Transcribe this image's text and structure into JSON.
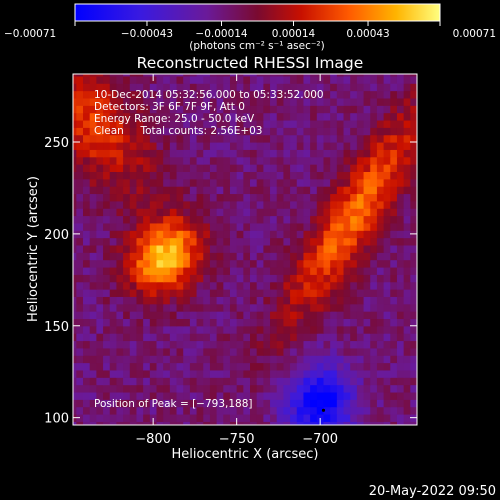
{
  "chart_data": {
    "type": "heatmap",
    "title": "Reconstructed RHESSI Image",
    "xlabel": "Heliocentric X (arcsec)",
    "ylabel": "Heliocentric Y (arcsec)",
    "xlim": [
      -848,
      -642
    ],
    "ylim": [
      96,
      287
    ],
    "x_ticks": [
      -800,
      -750,
      -700
    ],
    "x_tick_labels": [
      "−800",
      "−750",
      "−700"
    ],
    "y_ticks": [
      100,
      150,
      200,
      250
    ],
    "y_tick_labels": [
      "100",
      "150",
      "200",
      "250"
    ],
    "colorbar": {
      "range": [
        -0.00071,
        0.00071
      ],
      "ticks": [
        -0.00071,
        -0.00043,
        -0.00014,
        0.00014,
        0.00043,
        0.00071
      ],
      "tick_labels": [
        "−0.00071",
        "−0.00043",
        "−0.00014",
        "0.00014",
        "0.00043",
        "0.00071"
      ],
      "units_label": "(photons cm⁻² s⁻¹ asec⁻²)"
    },
    "annotations": {
      "time_range": "10-Dec-2014 05:32:56.000 to 05:33:52.000",
      "detectors": "Detectors: 3F 6F 7F 9F, Att 0",
      "energy_range": "Energy Range: 25.0 - 50.0 keV",
      "method": "Clean     Total counts: 2.56E+03",
      "peak": "Position of Peak = [−793,188]"
    },
    "peak_position": [
      -793,
      188
    ],
    "sources": [
      {
        "x": -793,
        "y": 188,
        "amplitude": 0.00071,
        "sigma_x": 13,
        "sigma_y": 16,
        "rotation_deg": -55
      },
      {
        "x": -680,
        "y": 210,
        "amplitude": 0.0005,
        "sigma_x": 11,
        "sigma_y": 48,
        "rotation_deg": -35
      },
      {
        "x": -835,
        "y": 260,
        "amplitude": 0.00038,
        "sigma_x": 16,
        "sigma_y": 30,
        "rotation_deg": 40
      },
      {
        "x": -700,
        "y": 108,
        "amplitude": -0.0006,
        "sigma_x": 14,
        "sigma_y": 14,
        "rotation_deg": 0
      }
    ],
    "colormap": "red-temperature with blue negatives",
    "background_level": -0.00012,
    "grid": false
  },
  "footer": {
    "timestamp": "20-May-2022 09:50"
  }
}
